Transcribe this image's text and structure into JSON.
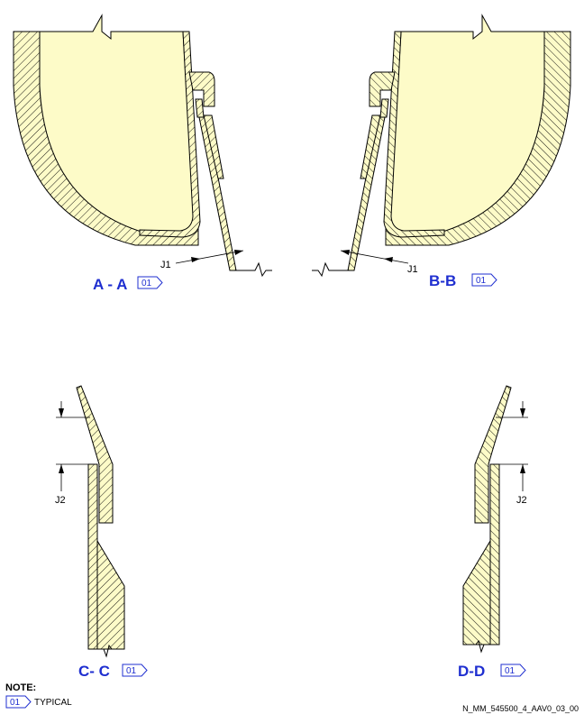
{
  "sections": {
    "aa": {
      "title": "A - A",
      "tag": "01",
      "dimension": "J1"
    },
    "bb": {
      "title": "B-B",
      "tag": "01",
      "dimension": "J1"
    },
    "cc": {
      "title": "C- C",
      "tag": "01",
      "dimension": "J2"
    },
    "dd": {
      "title": "D-D",
      "tag": "01",
      "dimension": "J2"
    }
  },
  "note": {
    "title": "NOTE:",
    "tag": "01",
    "text": "TYPICAL"
  },
  "reference": "N_MM_545500_4_AAV0_03_00",
  "colors": {
    "fill": "#fdfbc8",
    "accent": "#1f2fd0",
    "line": "#000000"
  }
}
